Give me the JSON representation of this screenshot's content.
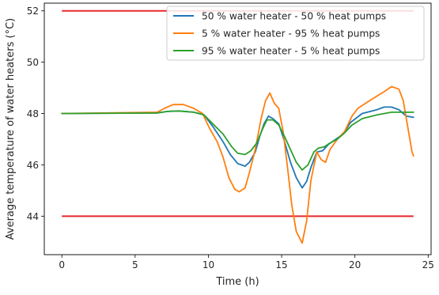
{
  "chart_data": {
    "type": "line",
    "title": "",
    "xlabel": "Time (h)",
    "ylabel": "Average temperature of water heaters (°C)",
    "xlim": [
      -1.2,
      25.2
    ],
    "ylim": [
      42.5,
      52.3
    ],
    "xticks": [
      0,
      5,
      10,
      15,
      20,
      25
    ],
    "yticks": [
      44,
      46,
      48,
      50,
      52
    ],
    "grid": false,
    "legend_position": "top-right",
    "limits": [
      {
        "name": "upper limit",
        "y": 52,
        "x": [
          0,
          24
        ],
        "color": "#e8282b"
      },
      {
        "name": "lower limit",
        "y": 44,
        "x": [
          0,
          24
        ],
        "color": "#e8282b"
      }
    ],
    "series": [
      {
        "name": "50 % water heater - 50 % heat pumps",
        "color": "#1f77b4",
        "points": [
          [
            0,
            48.0
          ],
          [
            6.5,
            48.02
          ],
          [
            7.2,
            48.08
          ],
          [
            8,
            48.1
          ],
          [
            9,
            48.05
          ],
          [
            9.7,
            47.95
          ],
          [
            10.3,
            47.5
          ],
          [
            11,
            46.9
          ],
          [
            11.5,
            46.4
          ],
          [
            12,
            46.05
          ],
          [
            12.5,
            45.95
          ],
          [
            12.8,
            46.1
          ],
          [
            13.2,
            46.5
          ],
          [
            13.5,
            47.1
          ],
          [
            13.8,
            47.6
          ],
          [
            14.1,
            47.9
          ],
          [
            14.4,
            47.8
          ],
          [
            14.8,
            47.6
          ],
          [
            15.2,
            46.9
          ],
          [
            15.6,
            46.1
          ],
          [
            16,
            45.5
          ],
          [
            16.4,
            45.1
          ],
          [
            16.7,
            45.35
          ],
          [
            17,
            45.9
          ],
          [
            17.4,
            46.5
          ],
          [
            17.8,
            46.55
          ],
          [
            18.2,
            46.8
          ],
          [
            18.7,
            47.0
          ],
          [
            19.2,
            47.2
          ],
          [
            19.7,
            47.65
          ],
          [
            20.5,
            48.0
          ],
          [
            21.5,
            48.15
          ],
          [
            22,
            48.25
          ],
          [
            22.5,
            48.25
          ],
          [
            23,
            48.15
          ],
          [
            23.5,
            47.9
          ],
          [
            24,
            47.85
          ]
        ]
      },
      {
        "name": "5 % water heater - 95 % heat pumps",
        "color": "#ff7f0e",
        "points": [
          [
            0,
            48.0
          ],
          [
            6.5,
            48.05
          ],
          [
            7,
            48.2
          ],
          [
            7.6,
            48.35
          ],
          [
            8.3,
            48.35
          ],
          [
            9,
            48.2
          ],
          [
            9.6,
            48.0
          ],
          [
            10.1,
            47.4
          ],
          [
            10.6,
            46.9
          ],
          [
            11,
            46.3
          ],
          [
            11.4,
            45.5
          ],
          [
            11.8,
            45.05
          ],
          [
            12.1,
            44.95
          ],
          [
            12.5,
            45.1
          ],
          [
            12.8,
            45.7
          ],
          [
            13.2,
            46.6
          ],
          [
            13.6,
            47.8
          ],
          [
            13.9,
            48.5
          ],
          [
            14.2,
            48.8
          ],
          [
            14.5,
            48.4
          ],
          [
            14.8,
            48.2
          ],
          [
            15.1,
            47.3
          ],
          [
            15.4,
            45.9
          ],
          [
            15.7,
            44.4
          ],
          [
            16,
            43.4
          ],
          [
            16.4,
            42.95
          ],
          [
            16.7,
            43.8
          ],
          [
            17,
            45.4
          ],
          [
            17.4,
            46.5
          ],
          [
            17.7,
            46.2
          ],
          [
            18,
            46.1
          ],
          [
            18.3,
            46.6
          ],
          [
            18.8,
            47.0
          ],
          [
            19.3,
            47.3
          ],
          [
            19.8,
            47.9
          ],
          [
            20.2,
            48.2
          ],
          [
            21,
            48.5
          ],
          [
            22,
            48.85
          ],
          [
            22.5,
            49.05
          ],
          [
            23,
            48.95
          ],
          [
            23.3,
            48.5
          ],
          [
            23.6,
            47.5
          ],
          [
            23.9,
            46.5
          ],
          [
            24,
            46.35
          ]
        ]
      },
      {
        "name": "95 % water heater - 5 % heat pumps",
        "color": "#2ca02c",
        "points": [
          [
            0,
            48.0
          ],
          [
            6.5,
            48.02
          ],
          [
            7.2,
            48.08
          ],
          [
            8,
            48.1
          ],
          [
            9,
            48.05
          ],
          [
            9.7,
            47.95
          ],
          [
            10.3,
            47.6
          ],
          [
            11,
            47.2
          ],
          [
            11.6,
            46.7
          ],
          [
            12,
            46.45
          ],
          [
            12.5,
            46.4
          ],
          [
            12.9,
            46.55
          ],
          [
            13.3,
            46.85
          ],
          [
            13.7,
            47.4
          ],
          [
            14,
            47.75
          ],
          [
            14.4,
            47.75
          ],
          [
            14.8,
            47.55
          ],
          [
            15.2,
            47.1
          ],
          [
            15.6,
            46.6
          ],
          [
            16,
            46.1
          ],
          [
            16.4,
            45.8
          ],
          [
            16.8,
            46.0
          ],
          [
            17.2,
            46.5
          ],
          [
            17.5,
            46.65
          ],
          [
            17.9,
            46.7
          ],
          [
            18.3,
            46.85
          ],
          [
            18.8,
            47.0
          ],
          [
            19.3,
            47.25
          ],
          [
            19.8,
            47.55
          ],
          [
            20.5,
            47.8
          ],
          [
            21.5,
            47.95
          ],
          [
            22.5,
            48.05
          ],
          [
            24,
            48.05
          ]
        ]
      }
    ]
  }
}
